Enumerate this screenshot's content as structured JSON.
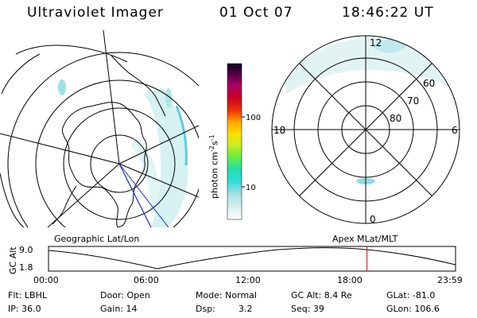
{
  "header": {
    "instrument": "Ultraviolet Imager",
    "date": "01 Oct 07",
    "time": "18:46:22 UT"
  },
  "mlt_map": {
    "mlt_labels": {
      "top": "12",
      "bottom": "0",
      "left": "18",
      "right": "6"
    },
    "lat_labels": [
      "60",
      "70",
      "80"
    ]
  },
  "colorbar": {
    "unit_main": "photon cm",
    "unit_exp1": "-2",
    "unit_mid": "s",
    "unit_exp2": "-1",
    "ticks": [
      "100",
      "10"
    ]
  },
  "section_labels": {
    "geographic": "Geographic Lat/Lon",
    "apex": "Apex MLat/MLT"
  },
  "altitude_plot": {
    "axis_label": "GC Alt",
    "y_ticks": [
      "9.0",
      "1.8"
    ],
    "x_ticks": [
      "00:00",
      "06:00",
      "12:00",
      "18:00",
      "23:59"
    ],
    "current_marker_time": "18:46",
    "current_marker_color": "#dd0000"
  },
  "info": {
    "filter": "Flt: LBHL",
    "door": "Door: Open",
    "mode": "Mode: Normal",
    "gc_alt": "GC Alt: 8.4 Re",
    "glat": "GLat: -81.0",
    "ip": "IP: 36.0",
    "gain": "Gain: 14",
    "dsp_label": "Dsp:",
    "dsp_value": "3.2",
    "seq": "Seq: 39",
    "glon": "GLon: 106.6"
  }
}
